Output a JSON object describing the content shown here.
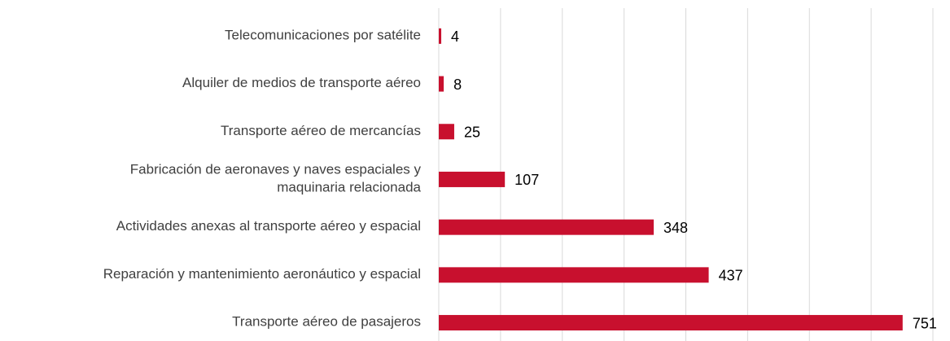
{
  "chart_data": {
    "type": "bar",
    "orientation": "horizontal",
    "categories": [
      "Telecomunicaciones por satélite",
      "Alquiler de medios de transporte aéreo",
      "Transporte aéreo de mercancías",
      "Fabricación de aeronaves y naves espaciales y\nmaquinaria relacionada",
      "Actividades anexas al transporte aéreo y espacial",
      "Reparación y mantenimiento aeronáutico y espacial",
      "Transporte aéreo de pasajeros"
    ],
    "values": [
      4,
      8,
      25,
      107,
      348,
      437,
      751
    ],
    "color": "#c8102e",
    "xlim": [
      0,
      800
    ],
    "xticks": [
      0,
      100,
      200,
      300,
      400,
      500,
      600,
      700,
      800
    ],
    "grid": true
  }
}
